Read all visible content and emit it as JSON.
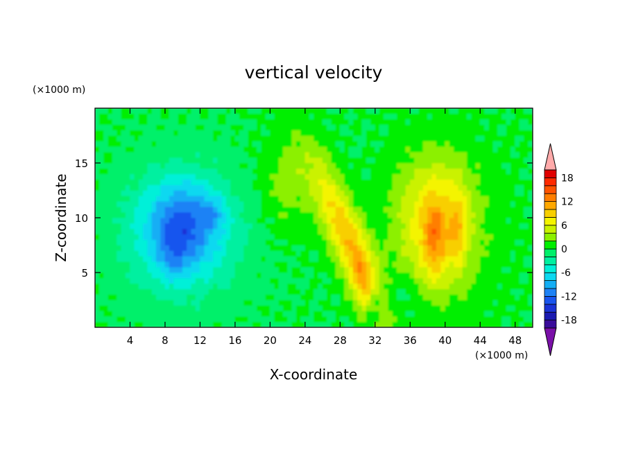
{
  "chart_data": {
    "type": "heatmap",
    "title": "vertical velocity",
    "xlabel": "X-coordinate",
    "ylabel": "Z-coordinate",
    "x_unit": "(×1000 m)",
    "y_unit": "(×1000 m)",
    "xlim": [
      0,
      50
    ],
    "ylim": [
      0,
      20
    ],
    "x_ticks": [
      4,
      8,
      12,
      16,
      20,
      24,
      28,
      32,
      36,
      40,
      44,
      48
    ],
    "y_ticks": [
      5,
      10,
      15
    ],
    "grid": false,
    "colorbar": {
      "placement": "right",
      "tick_labels": [
        "18",
        "12",
        "6",
        "0",
        "-6",
        "-12",
        "-18"
      ],
      "levels": [
        -20,
        -18,
        -16,
        -14,
        -12,
        -10,
        -8,
        -6,
        -4,
        -2,
        0,
        2,
        4,
        6,
        8,
        10,
        12,
        14,
        16,
        18,
        20
      ],
      "colors": [
        "#7a10a8",
        "#3a0c9a",
        "#1a1ab0",
        "#1a33d6",
        "#1955ee",
        "#1e82f5",
        "#13aef5",
        "#0cd8f0",
        "#00f0d8",
        "#00f0a0",
        "#00f06a",
        "#00ef00",
        "#8cf000",
        "#caf200",
        "#f4f400",
        "#f8cf00",
        "#ffa800",
        "#ff7e00",
        "#ff5300",
        "#ff2a00",
        "#e00000",
        "#ffaaaa"
      ]
    },
    "features": [
      {
        "kind": "downdraft",
        "x_center": 10,
        "z_center": 8,
        "value": -14
      },
      {
        "kind": "updraft",
        "x_center": 26,
        "z_center": 9,
        "value": 8
      },
      {
        "kind": "updraft",
        "x_center": 39,
        "z_center": 9,
        "value": 13
      }
    ]
  }
}
